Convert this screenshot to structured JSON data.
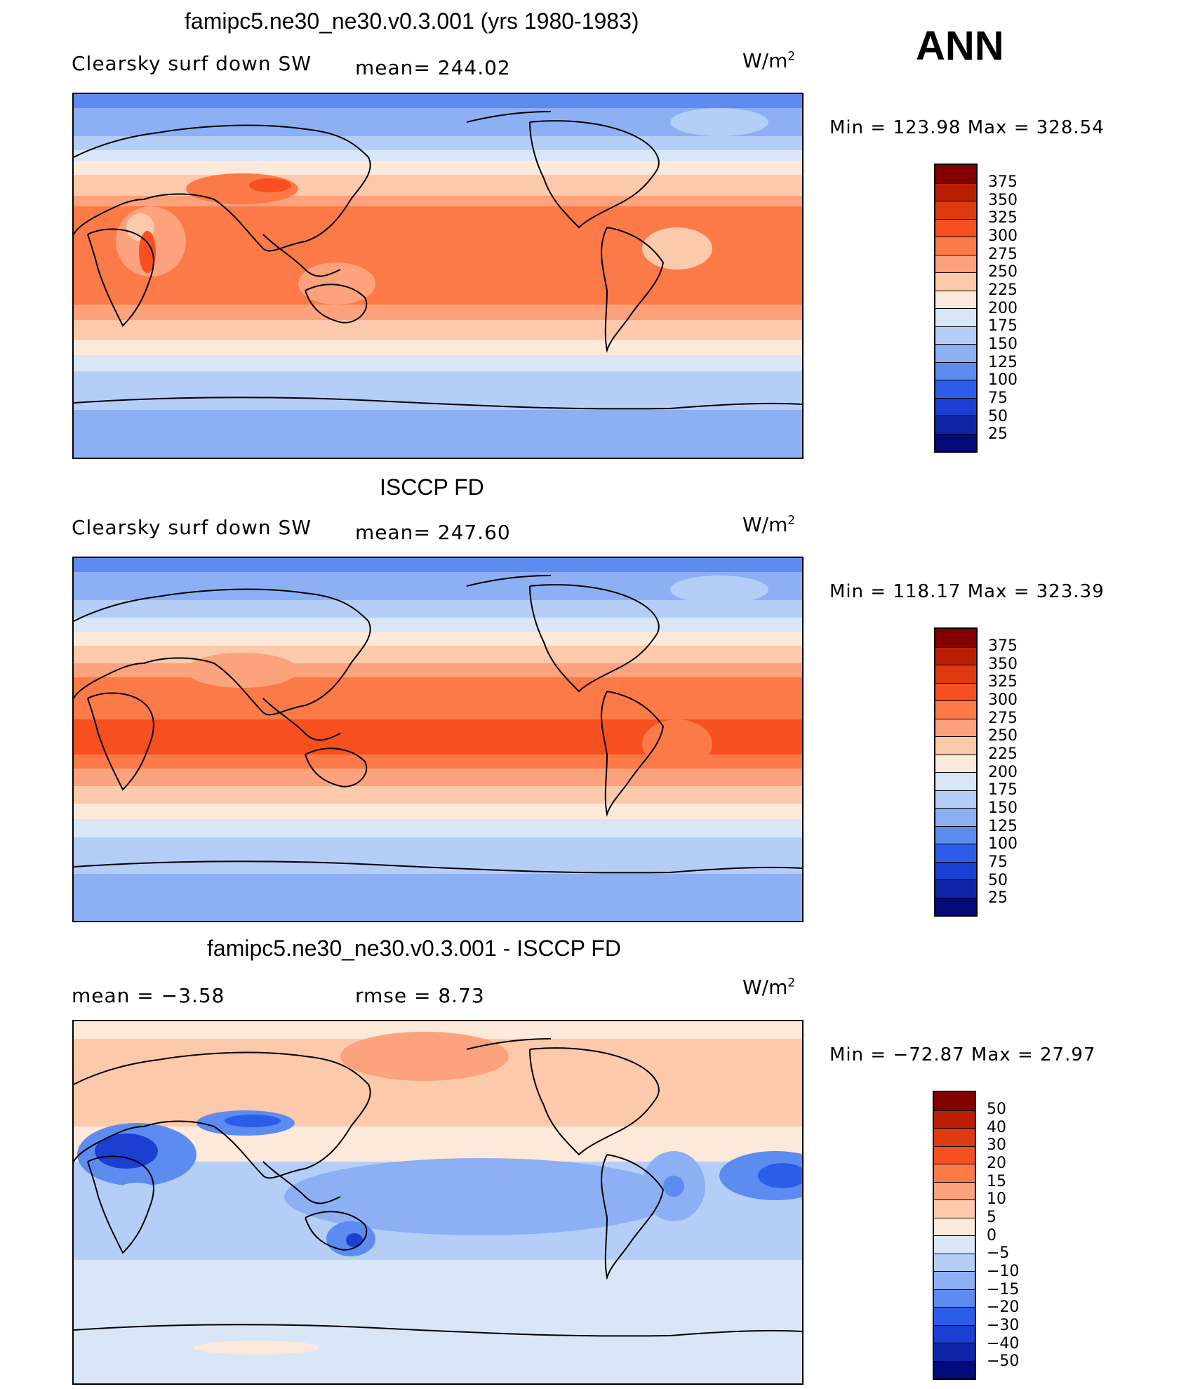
{
  "season": "ANN",
  "panels": [
    {
      "title": "famipc5.ne30_ne30.v0.3.001 (yrs 1980-1983)",
      "left_label": "Clearsky surf down SW",
      "stat_label": "mean= 244.02",
      "units_base": "W/m",
      "units_exp": "2",
      "minmax": "Min = 123.98 Max = 328.54",
      "legend_levels": [
        "375",
        "350",
        "325",
        "300",
        "275",
        "250",
        "225",
        "200",
        "175",
        "150",
        "125",
        "100",
        "75",
        "50",
        "25"
      ]
    },
    {
      "title": "ISCCP FD",
      "left_label": "Clearsky surf down SW",
      "stat_label": "mean= 247.60",
      "units_base": "W/m",
      "units_exp": "2",
      "minmax": "Min = 118.17 Max = 323.39",
      "legend_levels": [
        "375",
        "350",
        "325",
        "300",
        "275",
        "250",
        "225",
        "200",
        "175",
        "150",
        "125",
        "100",
        "75",
        "50",
        "25"
      ]
    },
    {
      "title": "famipc5.ne30_ne30.v0.3.001 - ISCCP FD",
      "left_label": "mean =    −3.58",
      "stat_label": "rmse =     8.73",
      "units_base": "W/m",
      "units_exp": "2",
      "minmax": "Min = −72.87 Max =   27.97",
      "legend_levels": [
        "50",
        "40",
        "30",
        "20",
        "15",
        "10",
        "5",
        "0",
        "−5",
        "−10",
        "−15",
        "−20",
        "−30",
        "−40",
        "−50"
      ]
    }
  ],
  "colors": {
    "abs_scale": [
      "#830000",
      "#b81f00",
      "#dd3a10",
      "#f75020",
      "#fb7a48",
      "#fca27c",
      "#fdc9ab",
      "#fde9d9",
      "#d8e6f8",
      "#b5cef7",
      "#8cb0f3",
      "#5c8cf0",
      "#2c5de8",
      "#1a3fd2",
      "#0f25a8",
      "#020b78"
    ],
    "diff_scale": [
      "#830000",
      "#b81f00",
      "#dd3a10",
      "#f75020",
      "#fb7a48",
      "#fca27c",
      "#fdc9ab",
      "#fde9d9",
      "#d8e6f8",
      "#b5cef7",
      "#8cb0f3",
      "#5c8cf0",
      "#2c5de8",
      "#1a3fd2",
      "#0f25a8",
      "#020b78"
    ]
  }
}
